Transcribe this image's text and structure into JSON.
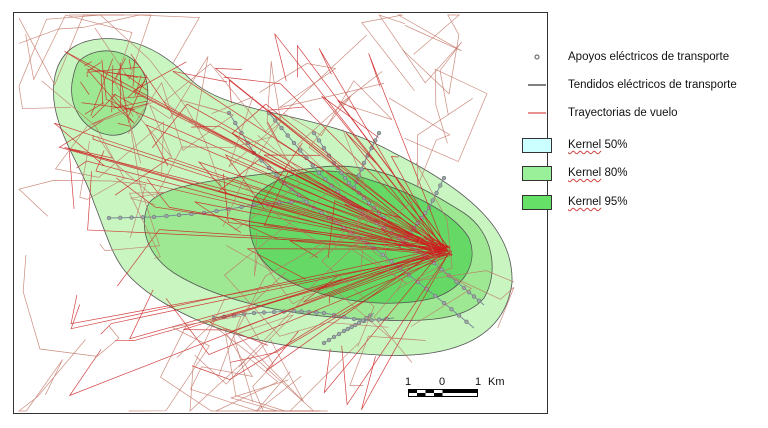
{
  "legend": {
    "items": [
      {
        "label": "Apoyos eléctricos de transporte",
        "symbol": "point",
        "color": "#555555"
      },
      {
        "label": "Tendidos eléctricos de transporte",
        "symbol": "line",
        "color": "#000000"
      },
      {
        "label": "Trayectorias de vuelo",
        "symbol": "line",
        "color": "#cc2020"
      },
      {
        "label_prefix": "Kernel",
        "label_suffix": " 50%",
        "symbol": "fill",
        "color": "#ccffff"
      },
      {
        "label_prefix": "Kernel",
        "label_suffix": " 80%",
        "symbol": "fill",
        "color": "#99f099"
      },
      {
        "label_prefix": "Kernel",
        "label_suffix": " 95%",
        "symbol": "fill",
        "color": "#66e066"
      }
    ]
  },
  "scalebar": {
    "ticks": [
      "1",
      "0",
      "1"
    ],
    "unit": "Km"
  },
  "colors": {
    "kernel_outer": "#c8f5c0",
    "kernel_mid": "#9ee894",
    "kernel_core": "#66d866",
    "flight_path": "#cc2020",
    "flight_path_faint": "#c07060",
    "power_line": "#7a8a9a",
    "pylon": "#777777"
  }
}
